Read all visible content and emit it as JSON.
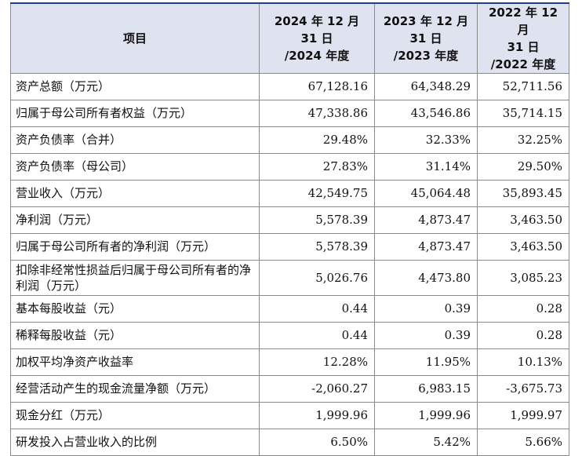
{
  "table": {
    "headers": [
      {
        "lines": [
          "项目"
        ]
      },
      {
        "lines": [
          "2024 年 12 月",
          "31 日",
          "/2024 年度"
        ]
      },
      {
        "lines": [
          "2023 年 12 月",
          "31 日",
          "/2023 年度"
        ]
      },
      {
        "lines": [
          "2022 年 12 月",
          "31 日",
          "/2022 年度"
        ]
      }
    ],
    "rows": [
      {
        "label": "资产总额（万元）",
        "v2024": "67,128.16",
        "v2023": "64,348.29",
        "v2022": "52,711.56"
      },
      {
        "label": "归属于母公司所有者权益（万元）",
        "v2024": "47,338.86",
        "v2023": "43,546.86",
        "v2022": "35,714.15"
      },
      {
        "label": "资产负债率（合并）",
        "v2024": "29.48%",
        "v2023": "32.33%",
        "v2022": "32.25%"
      },
      {
        "label": "资产负债率（母公司）",
        "v2024": "27.83%",
        "v2023": "31.14%",
        "v2022": "29.50%"
      },
      {
        "label": "营业收入（万元）",
        "v2024": "42,549.75",
        "v2023": "45,064.48",
        "v2022": "35,893.45"
      },
      {
        "label": "净利润（万元）",
        "v2024": "5,578.39",
        "v2023": "4,873.47",
        "v2022": "3,463.50"
      },
      {
        "label": "归属于母公司所有者的净利润（万元）",
        "v2024": "5,578.39",
        "v2023": "4,873.47",
        "v2022": "3,463.50"
      },
      {
        "label": "扣除非经常性损益后归属于母公司所有者的净利润（万元）",
        "v2024": "5,026.76",
        "v2023": "4,473.80",
        "v2022": "3,085.23"
      },
      {
        "label": "基本每股收益（元）",
        "v2024": "0.44",
        "v2023": "0.39",
        "v2022": "0.28"
      },
      {
        "label": "稀释每股收益（元）",
        "v2024": "0.44",
        "v2023": "0.39",
        "v2022": "0.28"
      },
      {
        "label": "加权平均净资产收益率",
        "v2024": "12.28%",
        "v2023": "11.95%",
        "v2022": "10.13%"
      },
      {
        "label": "经营活动产生的现金流量净额（万元）",
        "v2024": "-2,060.27",
        "v2023": "6,983.15",
        "v2022": "-3,675.73"
      },
      {
        "label": "现金分红（万元）",
        "v2024": "1,999.96",
        "v2023": "1,999.96",
        "v2022": "1,999.97"
      },
      {
        "label": "研发投入占营业收入的比例",
        "v2024": "6.50%",
        "v2023": "5.42%",
        "v2022": "5.66%"
      }
    ]
  },
  "colors": {
    "header_bg": "#dfe3ef",
    "border": "#8a8a8a",
    "top_rule": "#1f3f8c"
  }
}
